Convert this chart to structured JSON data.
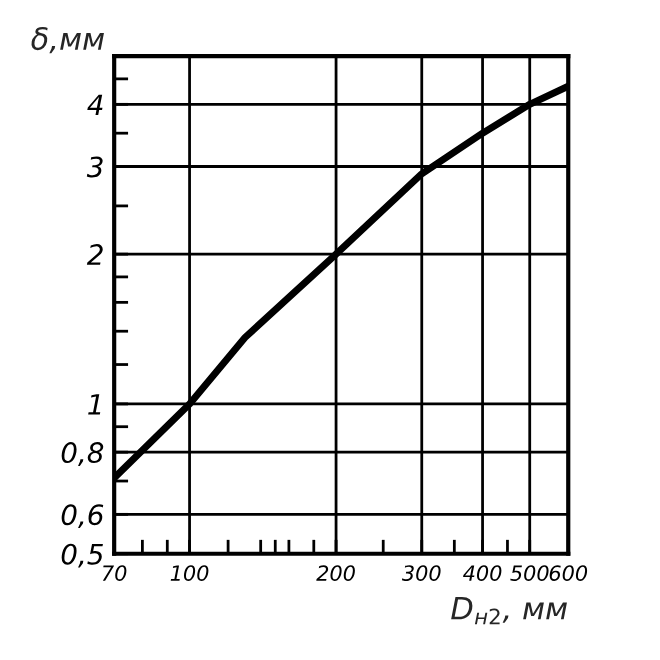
{
  "chart_data": {
    "type": "line",
    "xlabel": "D$_{н2}$, мм",
    "ylabel": "δ,мм",
    "log": "xy",
    "grid": true,
    "legend": false,
    "x": [
      70,
      100,
      130,
      200,
      300,
      400,
      500,
      600
    ],
    "series": [
      {
        "color": "#000000",
        "values": [
          0.71,
          1.0,
          1.36,
          2.0,
          2.9,
          3.5,
          4.0,
          4.35
        ]
      }
    ],
    "xlim": [
      70,
      600
    ],
    "ylim": [
      0.5,
      5
    ],
    "xticks": [
      {
        "value": 70,
        "label": "70"
      },
      {
        "value": 80,
        "label": null
      },
      {
        "value": 90,
        "label": null
      },
      {
        "value": 100,
        "label": "100"
      },
      {
        "value": 120,
        "label": null
      },
      {
        "value": 140,
        "label": null
      },
      {
        "value": 150,
        "label": null
      },
      {
        "value": 160,
        "label": null
      },
      {
        "value": 180,
        "label": null
      },
      {
        "value": 200,
        "label": "200"
      },
      {
        "value": 250,
        "label": null
      },
      {
        "value": 300,
        "label": "300"
      },
      {
        "value": 350,
        "label": null
      },
      {
        "value": 400,
        "label": "400"
      },
      {
        "value": 450,
        "label": null
      },
      {
        "value": 500,
        "label": "500"
      },
      {
        "value": 600,
        "label": "600"
      }
    ],
    "yticks": [
      {
        "value": 0.5,
        "label": "0,5"
      },
      {
        "value": 0.6,
        "label": "0,6"
      },
      {
        "value": 0.7,
        "label": null
      },
      {
        "value": 0.8,
        "label": "0,8"
      },
      {
        "value": 0.9,
        "label": null
      },
      {
        "value": 1,
        "label": "1"
      },
      {
        "value": 1.2,
        "label": null
      },
      {
        "value": 1.4,
        "label": null
      },
      {
        "value": 1.6,
        "label": null
      },
      {
        "value": 1.8,
        "label": null
      },
      {
        "value": 2,
        "label": "2"
      },
      {
        "value": 2.5,
        "label": null
      },
      {
        "value": 3,
        "label": "3"
      },
      {
        "value": 3.5,
        "label": null
      },
      {
        "value": 4,
        "label": "4"
      },
      {
        "value": 4.5,
        "label": null
      }
    ]
  }
}
